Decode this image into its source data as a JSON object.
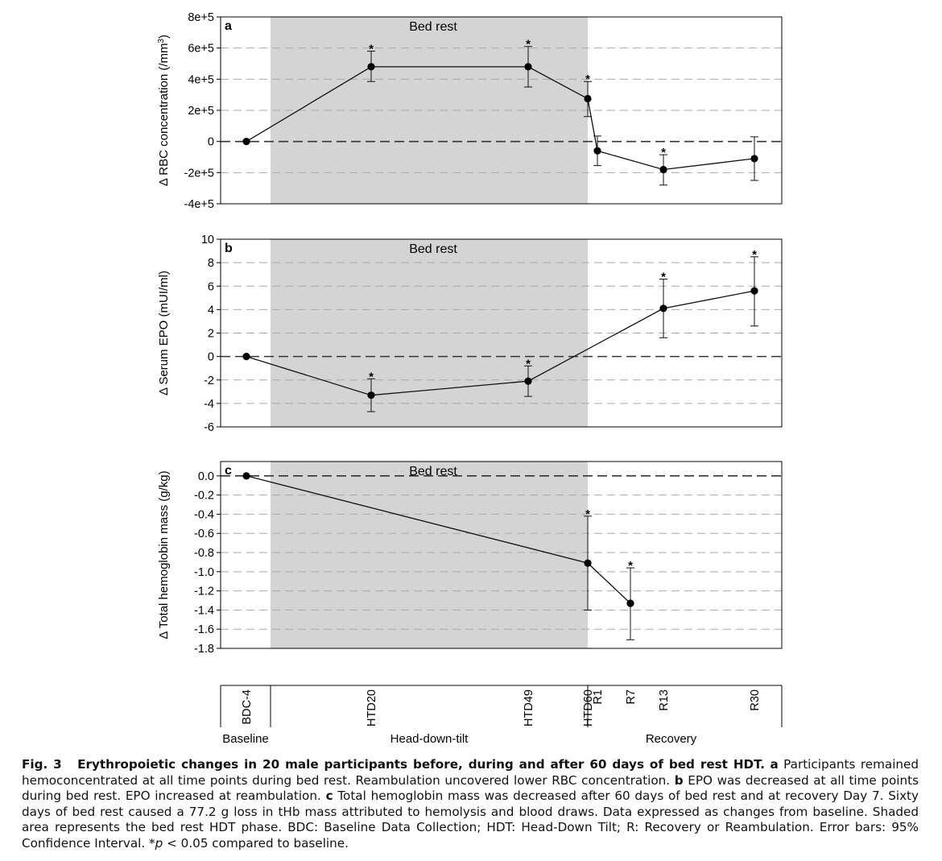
{
  "chart_data": [
    {
      "type": "line",
      "panel_label": "a",
      "shade_label": "Bed rest",
      "ylabel": "Δ RBC concentration (/mm³)",
      "ylabel_main": "Δ RBC concentration (/mm",
      "ylabel_sup": "3",
      "ylabel_end": ")",
      "ylim": [
        -400000,
        800000
      ],
      "yticks": [
        -400000,
        -200000,
        0,
        200000,
        400000,
        600000,
        800000
      ],
      "ytick_labels": [
        "-4e+5",
        "-2e+5",
        "0",
        "2e+5",
        "4e+5",
        "6e+5",
        "8e+5"
      ],
      "grid": "horizontal dashed",
      "points": [
        {
          "t": -4,
          "value": 0,
          "lo": null,
          "hi": null,
          "sig": false
        },
        {
          "t": 20,
          "value": 480000,
          "lo": 385000,
          "hi": 580000,
          "sig": true
        },
        {
          "t": 49,
          "value": 480000,
          "lo": 350000,
          "hi": 610000,
          "sig": true
        },
        {
          "t": 60,
          "value": 275000,
          "lo": 160000,
          "hi": 385000,
          "sig": true
        },
        {
          "t": 61,
          "value": -60000,
          "lo": -155000,
          "hi": 35000,
          "sig": false
        },
        {
          "t": 73,
          "value": -180000,
          "lo": -280000,
          "hi": -85000,
          "sig": true
        },
        {
          "t": 90,
          "value": -110000,
          "lo": -250000,
          "hi": 30000,
          "sig": false
        }
      ]
    },
    {
      "type": "line",
      "panel_label": "b",
      "shade_label": "Bed rest",
      "ylabel": "Δ Serum EPO (mUI/ml)",
      "ylabel_main": "Δ Serum EPO (mUI/ml)",
      "ylabel_sup": "",
      "ylabel_end": "",
      "ylim": [
        -6,
        10
      ],
      "yticks": [
        -6,
        -4,
        -2,
        0,
        2,
        4,
        6,
        8,
        10
      ],
      "ytick_labels": [
        "-6",
        "-4",
        "-2",
        "0",
        "2",
        "4",
        "6",
        "8",
        "10"
      ],
      "grid": "horizontal dashed",
      "points": [
        {
          "t": -4,
          "value": 0,
          "lo": null,
          "hi": null,
          "sig": false
        },
        {
          "t": 20,
          "value": -3.3,
          "lo": -4.7,
          "hi": -1.9,
          "sig": true
        },
        {
          "t": 49,
          "value": -2.1,
          "lo": -3.4,
          "hi": -0.8,
          "sig": true
        },
        {
          "t": 73,
          "value": 4.1,
          "lo": 1.6,
          "hi": 6.6,
          "sig": true
        },
        {
          "t": 90,
          "value": 5.6,
          "lo": 2.6,
          "hi": 8.5,
          "sig": true
        }
      ]
    },
    {
      "type": "line",
      "panel_label": "c",
      "shade_label": "Bed rest",
      "ylabel": "Δ Total hemoglobin mass (g/kg)",
      "ylabel_main": "Δ Total hemoglobin mass (g/kg)",
      "ylabel_sup": "",
      "ylabel_end": "",
      "ylim": [
        -1.8,
        0.15
      ],
      "yticks": [
        -1.8,
        -1.6,
        -1.4,
        -1.2,
        -1.0,
        -0.8,
        -0.6,
        -0.4,
        -0.2,
        0.0
      ],
      "ytick_labels": [
        "-1.8",
        "-1.6",
        "-1.4",
        "-1.2",
        "-1.0",
        "-0.8",
        "-0.6",
        "-0.4",
        "-0.2",
        "0.0"
      ],
      "grid": "horizontal dashed",
      "points": [
        {
          "t": -4,
          "value": 0,
          "lo": null,
          "hi": null,
          "sig": false
        },
        {
          "t": 60,
          "value": -0.91,
          "lo": -1.4,
          "hi": -0.42,
          "sig": true
        },
        {
          "t": 67,
          "value": -1.33,
          "lo": -1.71,
          "hi": -0.96,
          "sig": true
        }
      ]
    }
  ],
  "timeline": {
    "ticks": [
      {
        "t": -4,
        "label": "BDC-4"
      },
      {
        "t": 20,
        "label": "HTD20"
      },
      {
        "t": 49,
        "label": "HTD49"
      },
      {
        "t": 60,
        "label": "HTD60"
      },
      {
        "t": 61,
        "label": "R1"
      },
      {
        "t": 67,
        "label": "R7"
      },
      {
        "t": 73,
        "label": "R13"
      },
      {
        "t": 90,
        "label": "R30"
      }
    ],
    "phases": [
      {
        "label": "Baseline",
        "from": -4,
        "to": 0
      },
      {
        "label": "Head-down-tilt",
        "from": 0,
        "to": 60
      },
      {
        "label": "Recovery",
        "from": 60,
        "to": 90
      }
    ]
  },
  "significance_marker": "*",
  "caption": {
    "fig": "Fig. 3",
    "title": "Erythropoietic changes in 20 male participants before, during and after 60 days of bed rest HDT.",
    "a_label": "a",
    "a_text": "Participants remained hemoconcentrated at all time points during bed rest. Reambulation uncovered lower RBC concentration.",
    "b_label": "b",
    "b_text": "EPO was decreased at all time points during bed rest. EPO increased at reambulation.",
    "c_label": "c",
    "c_text": "Total hemoglobin mass was decreased after 60 days of bed rest and at recovery Day 7. Sixty days of bed rest caused a 77.2 g loss in tHb mass attributed to hemolysis and blood draws. Data expressed as changes from baseline. Shaded area represents the bed rest HDT phase. BDC: Baseline Data Collection; HDT: Head-Down Tilt; R: Recovery or Reambulation. Error bars: 95% Confidence Interval. *",
    "p_symbol": "p",
    "tail": " < 0.05 compared to baseline."
  }
}
